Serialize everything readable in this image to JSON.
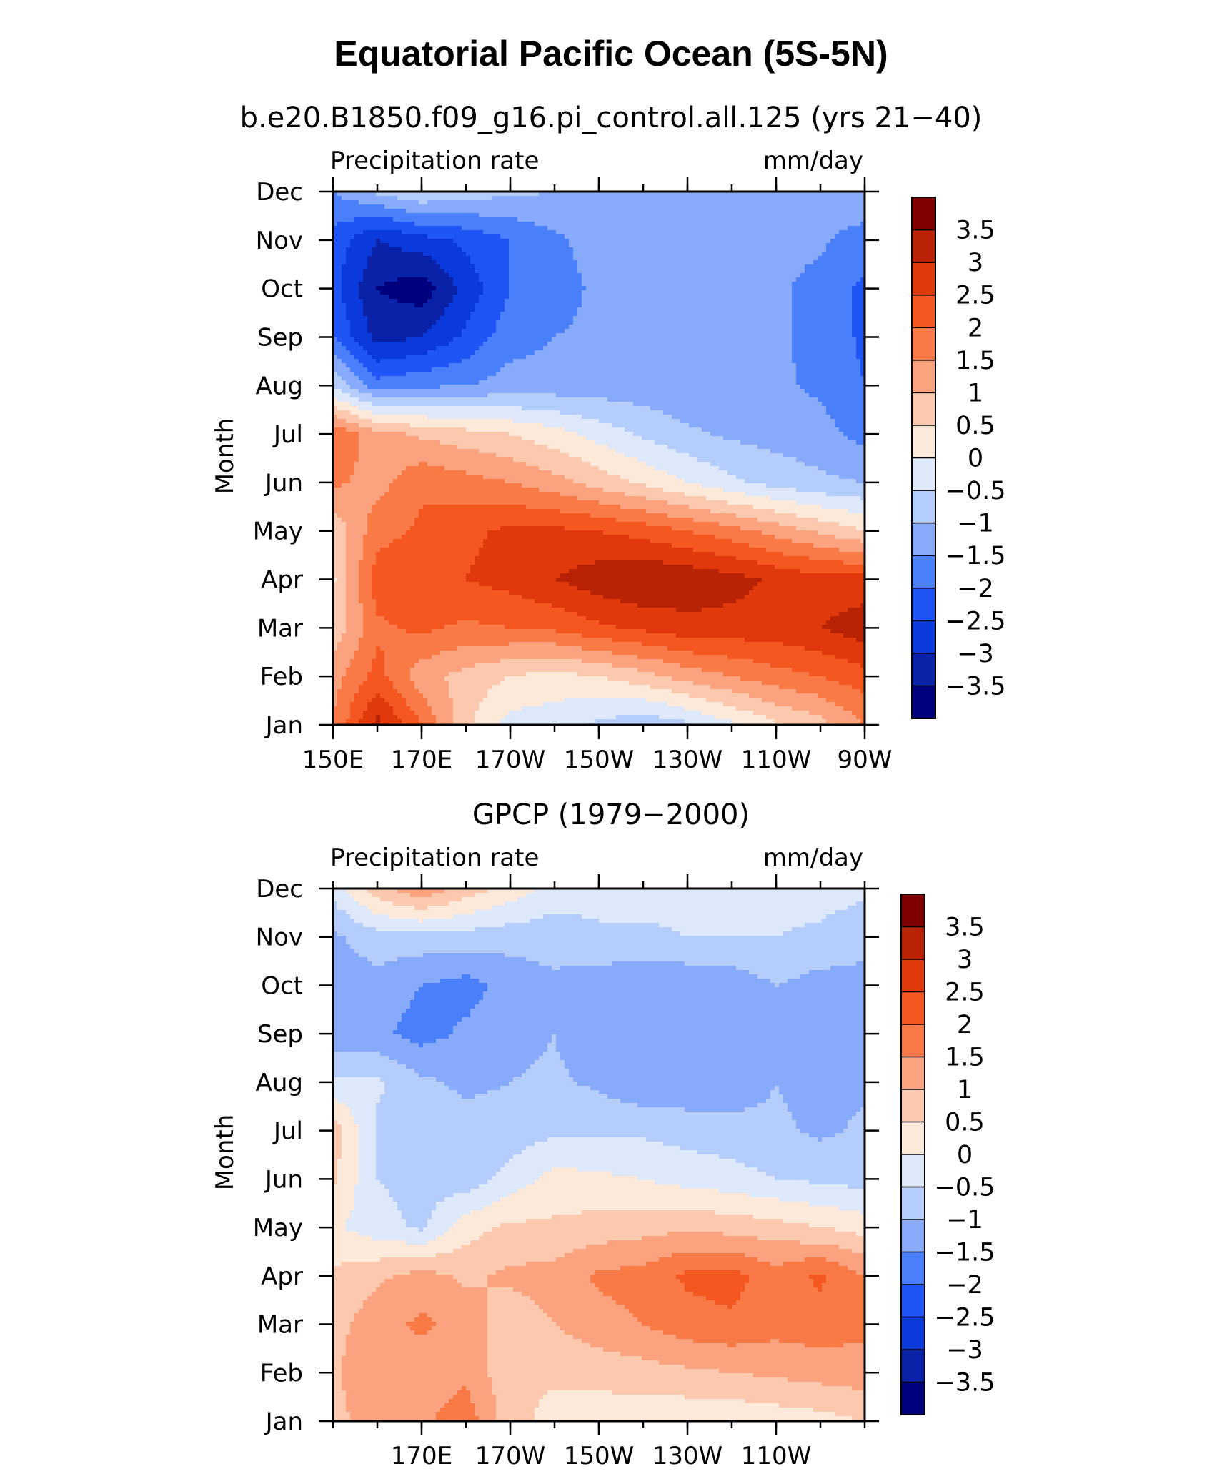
{
  "figure": {
    "title": "Equatorial Pacific Ocean (5S-5N)"
  },
  "chart_data": [
    {
      "type": "heatmap",
      "subtitle": "b.e20.B1850.f09_g16.pi_control.all.125 (yrs 21−40)",
      "left_label": "Precipitation rate",
      "right_label": "mm/day",
      "ylabel": "Month",
      "xlim": [
        150,
        270
      ],
      "x_tick_values": [
        150,
        170,
        190,
        210,
        230,
        250,
        270
      ],
      "x_tick_labels": [
        "150E",
        "170E",
        "170W",
        "150W",
        "130W",
        "110W",
        "90W"
      ],
      "y_tick_labels": [
        "Jan",
        "Feb",
        "Mar",
        "Apr",
        "May",
        "Jun",
        "Jul",
        "Aug",
        "Sep",
        "Oct",
        "Nov",
        "Dec"
      ],
      "x": [
        150,
        160,
        170,
        180,
        190,
        200,
        210,
        220,
        230,
        240,
        250,
        260,
        270
      ],
      "y": [
        "Jan",
        "Feb",
        "Mar",
        "Apr",
        "May",
        "Jun",
        "Jul",
        "Aug",
        "Sep",
        "Oct",
        "Nov",
        "Dec"
      ],
      "z": [
        [
          1.5,
          3.2,
          2.0,
          0.6,
          -0.2,
          -0.3,
          -0.6,
          -0.9,
          -0.6,
          -0.1,
          0.4,
          0.8,
          1.5
        ],
        [
          1.3,
          2.2,
          1.2,
          0.8,
          0.5,
          0.3,
          0.5,
          0.8,
          1.2,
          1.5,
          1.8,
          2.0,
          2.3
        ],
        [
          0.6,
          1.9,
          2.1,
          1.9,
          2.0,
          2.1,
          2.4,
          2.6,
          2.8,
          2.8,
          2.8,
          3.0,
          3.3
        ],
        [
          0.4,
          2.3,
          2.4,
          2.5,
          2.7,
          3.0,
          3.3,
          3.5,
          3.4,
          3.2,
          2.9,
          2.7,
          2.7
        ],
        [
          0.6,
          1.8,
          2.1,
          2.4,
          2.6,
          2.6,
          2.5,
          2.3,
          2.0,
          1.7,
          1.3,
          0.9,
          0.5
        ],
        [
          1.6,
          1.3,
          1.9,
          1.7,
          1.5,
          1.2,
          0.8,
          0.4,
          0.0,
          -0.4,
          -0.7,
          -0.9,
          -1.0
        ],
        [
          2.0,
          1.2,
          0.9,
          0.7,
          0.5,
          0.2,
          -0.2,
          -0.6,
          -0.9,
          -1.1,
          -1.2,
          -1.3,
          -1.7
        ],
        [
          -0.6,
          -1.8,
          -1.6,
          -1.5,
          -1.3,
          -1.3,
          -1.3,
          -1.3,
          -1.4,
          -1.4,
          -1.4,
          -1.6,
          -2.0
        ],
        [
          -2.0,
          -3.2,
          -3.0,
          -2.4,
          -1.7,
          -1.5,
          -1.4,
          -1.3,
          -1.3,
          -1.3,
          -1.4,
          -1.7,
          -2.1
        ],
        [
          -2.3,
          -3.5,
          -3.8,
          -2.8,
          -2.0,
          -1.7,
          -1.4,
          -1.3,
          -1.3,
          -1.3,
          -1.4,
          -1.7,
          -2.1
        ],
        [
          -2.2,
          -3.0,
          -2.7,
          -2.4,
          -2.0,
          -1.6,
          -1.3,
          -1.3,
          -1.3,
          -1.3,
          -1.3,
          -1.4,
          -1.8
        ],
        [
          -1.5,
          -0.9,
          -0.5,
          -0.7,
          -0.9,
          -1.0,
          -1.1,
          -1.1,
          -1.2,
          -1.2,
          -1.2,
          -1.1,
          -1.0
        ]
      ]
    },
    {
      "type": "heatmap",
      "subtitle": "GPCP (1979−2000)",
      "left_label": "Precipitation rate",
      "right_label": "mm/day",
      "ylabel": "Month",
      "xlim": [
        150,
        270
      ],
      "x_tick_values": [
        170,
        190,
        210,
        230,
        250
      ],
      "x_tick_labels": [
        "170E",
        "170W",
        "150W",
        "130W",
        "110W"
      ],
      "y_tick_labels": [
        "Jan",
        "Feb",
        "Mar",
        "Apr",
        "May",
        "Jun",
        "Jul",
        "Aug",
        "Sep",
        "Oct",
        "Nov",
        "Dec"
      ],
      "x": [
        150,
        160,
        170,
        180,
        190,
        200,
        210,
        220,
        230,
        240,
        250,
        260,
        270
      ],
      "y": [
        "Jan",
        "Feb",
        "Mar",
        "Apr",
        "May",
        "Jun",
        "Jul",
        "Aug",
        "Sep",
        "Oct",
        "Nov",
        "Dec"
      ],
      "z": [
        [
          0.8,
          1.3,
          1.4,
          1.8,
          0.7,
          0.3,
          0.2,
          0.1,
          0.1,
          0.1,
          0.2,
          0.3,
          0.5
        ],
        [
          0.9,
          1.5,
          1.2,
          1.4,
          0.6,
          0.6,
          0.7,
          0.8,
          0.9,
          1.0,
          1.1,
          1.2,
          1.3
        ],
        [
          0.8,
          1.3,
          1.6,
          1.3,
          0.7,
          1.0,
          1.3,
          1.5,
          1.8,
          1.9,
          1.7,
          1.8,
          1.6
        ],
        [
          0.6,
          0.9,
          1.2,
          0.9,
          1.1,
          1.2,
          1.6,
          1.7,
          2.1,
          2.2,
          1.7,
          2.1,
          1.5
        ],
        [
          0.1,
          -0.3,
          -0.6,
          0.3,
          0.6,
          0.6,
          0.7,
          0.8,
          0.9,
          0.8,
          0.7,
          0.5,
          0.3
        ],
        [
          0.6,
          -0.5,
          -0.7,
          -0.8,
          -0.3,
          0.2,
          0.1,
          0.0,
          -0.2,
          -0.3,
          -0.5,
          -0.6,
          -0.7
        ],
        [
          0.8,
          -0.6,
          -0.8,
          -0.8,
          -0.8,
          -0.6,
          -0.6,
          -0.6,
          -0.7,
          -0.8,
          -0.9,
          -1.1,
          -0.9
        ],
        [
          -0.4,
          -0.4,
          -0.9,
          -1.1,
          -1.0,
          -0.9,
          -1.1,
          -1.4,
          -1.4,
          -1.3,
          -1.0,
          -1.2,
          -1.1
        ],
        [
          -1.3,
          -1.4,
          -1.7,
          -1.4,
          -1.2,
          -1.0,
          -1.5,
          -1.5,
          -1.5,
          -1.5,
          -1.0,
          -1.5,
          -1.3
        ],
        [
          -1.3,
          -1.2,
          -1.5,
          -1.7,
          -1.3,
          -1.1,
          -1.3,
          -1.4,
          -1.4,
          -1.3,
          -1.0,
          -1.2,
          -1.2
        ],
        [
          -1.1,
          -0.7,
          -0.7,
          -0.7,
          -0.8,
          -0.8,
          -0.6,
          -0.6,
          -0.5,
          -0.5,
          -0.5,
          -0.6,
          -0.8
        ],
        [
          -0.3,
          0.8,
          1.4,
          0.8,
          0.3,
          -0.2,
          -0.3,
          -0.3,
          -0.3,
          -0.3,
          -0.3,
          -0.3,
          -0.4
        ]
      ]
    }
  ],
  "colorbar": {
    "labels": [
      "3.5",
      "3",
      "2.5",
      "2",
      "1.5",
      "1",
      "0.5",
      "0",
      "−0.5",
      "−1",
      "−1.5",
      "−2",
      "−2.5",
      "−3",
      "−3.5"
    ],
    "levels": [
      -3.5,
      -3,
      -2.5,
      -2,
      -1.5,
      -1,
      -0.5,
      0,
      0.5,
      1,
      1.5,
      2,
      2.5,
      3,
      3.5
    ],
    "colors": [
      "#00007f",
      "#0a22a8",
      "#0a3adc",
      "#1f55f5",
      "#4a80fb",
      "#87aafb",
      "#b5cdfb",
      "#dde9fb",
      "#fde9da",
      "#fcc9af",
      "#fba37e",
      "#fa7a47",
      "#f55720",
      "#e03a0c",
      "#b82205",
      "#7f0000"
    ]
  }
}
